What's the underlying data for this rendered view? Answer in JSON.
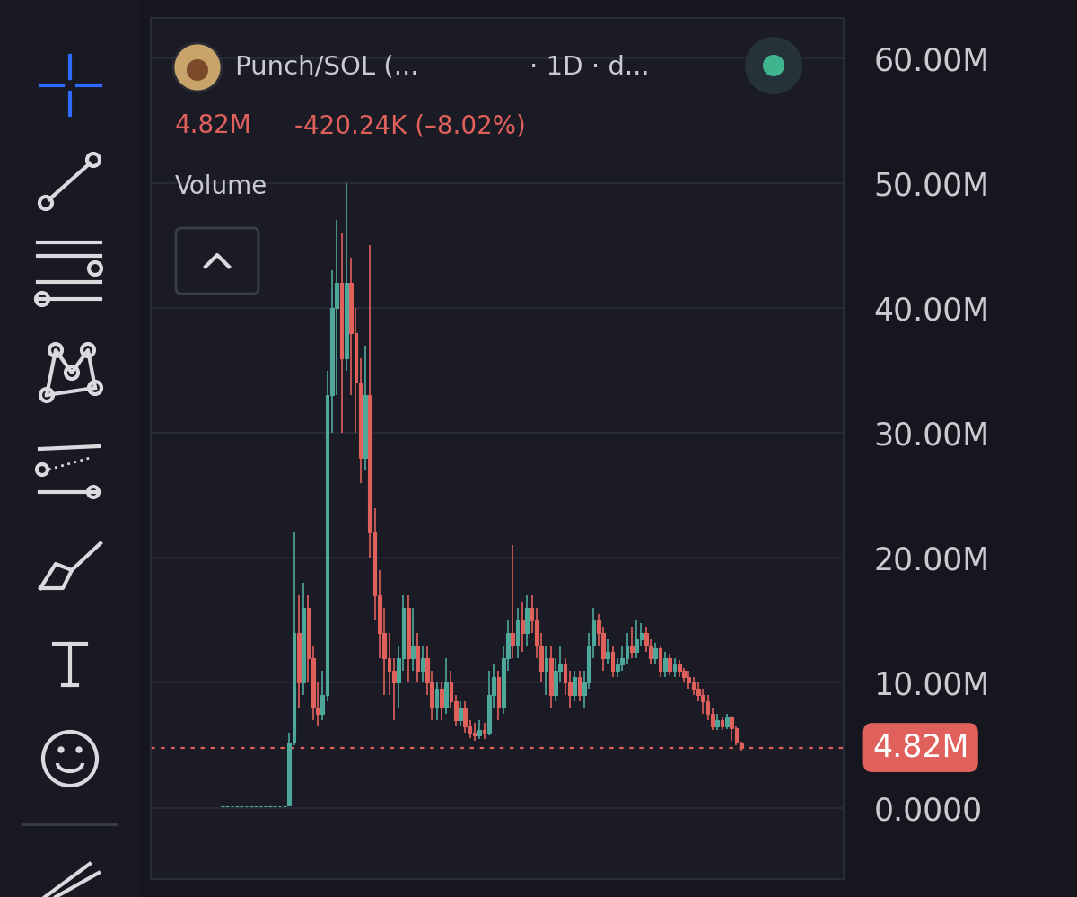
{
  "chart_data": {
    "type": "candlestick",
    "title": "Punch/SOL (...",
    "subtitle": "· 1D · d...",
    "price_label": "4.82M",
    "change_label": "-420.24K (–8.02%)",
    "indicator_label": "Volume",
    "last_price": {
      "value": 4820000,
      "label": "4.82M"
    },
    "color": {
      "up": "#4da89a",
      "down": "#e0605b"
    },
    "grid": true,
    "tick_labels": "y",
    "ylim": [
      -5700000,
      63200000
    ],
    "yticks": [
      {
        "value": 0,
        "label": "0.0000"
      },
      {
        "value": 10000000,
        "label": "10.00M"
      },
      {
        "value": 20000000,
        "label": "20.00M"
      },
      {
        "value": 30000000,
        "label": "30.00M"
      },
      {
        "value": 40000000,
        "label": "40.00M"
      },
      {
        "value": 50000000,
        "label": "50.00M"
      },
      {
        "value": 60000000,
        "label": "60.00M"
      }
    ],
    "categories": [
      null,
      null,
      null,
      null,
      null,
      null,
      null,
      null,
      null,
      null,
      null,
      null,
      null,
      null,
      null,
      null,
      null,
      null,
      null,
      null,
      null,
      null,
      null,
      null,
      null,
      null,
      null,
      null,
      null,
      null,
      null,
      null,
      null,
      null,
      null,
      null,
      null,
      null,
      null,
      null,
      null,
      null,
      null,
      null,
      null,
      null,
      null,
      null,
      null,
      null,
      null,
      null,
      null,
      null,
      null,
      null,
      null,
      null,
      null,
      null,
      null,
      null,
      null,
      null,
      null,
      null,
      null,
      null,
      null,
      null,
      null,
      null,
      null,
      null,
      null,
      null,
      null,
      null,
      null,
      null,
      null,
      null,
      null,
      null,
      null,
      null,
      null,
      null,
      null,
      null,
      null,
      null,
      null,
      null,
      null,
      null,
      null,
      null,
      null,
      null,
      null,
      null,
      null,
      null,
      null,
      null,
      null,
      null,
      null,
      null
    ],
    "open": [
      100000,
      100000,
      100000,
      100000,
      100000,
      100000,
      100000,
      100000,
      100000,
      100000,
      100000,
      100000,
      100000,
      100000,
      200000,
      5200000,
      14000000,
      10000000,
      16000000,
      12000000,
      8000000,
      7500000,
      9000000,
      33000000,
      40000000,
      42000000,
      36000000,
      42000000,
      38000000,
      34000000,
      28000000,
      33000000,
      22000000,
      17000000,
      14000000,
      12000000,
      11000000,
      10000000,
      12000000,
      16000000,
      12000000,
      13000000,
      11000000,
      12000000,
      10000000,
      8000000,
      9500000,
      8000000,
      10000000,
      8500000,
      7000000,
      8000000,
      6500000,
      6000000,
      5800000,
      6200000,
      6000000,
      9000000,
      10500000,
      8000000,
      12000000,
      14000000,
      13000000,
      15000000,
      14000000,
      16000000,
      15000000,
      13000000,
      11000000,
      12000000,
      9000000,
      11000000,
      11500000,
      10000000,
      9000000,
      10500000,
      9000000,
      10000000,
      13000000,
      15000000,
      14000000,
      12000000,
      12500000,
      11000000,
      11500000,
      12000000,
      13000000,
      12500000,
      13500000,
      14000000,
      13000000,
      12000000,
      12800000,
      11000000,
      12000000,
      11000000,
      11500000,
      11000000,
      10500000,
      10000000,
      9500000,
      9000000,
      8500000,
      7500000,
      6500000,
      7000000,
      6500000,
      7200000,
      6400000,
      5240000
    ],
    "high": [
      150000,
      150000,
      150000,
      150000,
      150000,
      150000,
      150000,
      150000,
      150000,
      150000,
      150000,
      150000,
      150000,
      150000,
      6000000,
      22000000,
      17000000,
      18000000,
      17000000,
      13000000,
      10000000,
      11000000,
      35000000,
      43000000,
      47000000,
      46000000,
      50000000,
      44000000,
      40000000,
      36000000,
      37000000,
      45000000,
      24000000,
      19000000,
      16000000,
      14000000,
      12000000,
      13000000,
      17000000,
      17000000,
      16000000,
      14000000,
      13000000,
      13000000,
      11000000,
      10000000,
      10000000,
      12000000,
      11000000,
      9000000,
      8500000,
      8500000,
      7000000,
      6800000,
      7000000,
      6800000,
      11000000,
      11500000,
      11000000,
      13000000,
      15000000,
      21000000,
      16000000,
      16500000,
      17000000,
      17000000,
      16000000,
      14000000,
      13000000,
      13000000,
      12000000,
      13000000,
      12000000,
      11000000,
      11000000,
      11000000,
      11000000,
      14000000,
      16000000,
      15500000,
      14500000,
      13500000,
      13000000,
      12000000,
      13000000,
      14000000,
      14500000,
      15000000,
      14800000,
      14500000,
      13500000,
      13200000,
      13000000,
      12500000,
      12300000,
      12000000,
      11800000,
      11200000,
      11000000,
      10500000,
      10000000,
      9500000,
      9000000,
      8000000,
      7500000,
      7200000,
      7500000,
      7400000,
      6600000,
      5300000
    ],
    "low": [
      50000,
      50000,
      50000,
      50000,
      50000,
      50000,
      50000,
      50000,
      50000,
      50000,
      50000,
      50000,
      50000,
      50000,
      200000,
      5000000,
      8000000,
      9000000,
      10000000,
      7000000,
      6500000,
      7000000,
      8500000,
      30000000,
      33000000,
      30000000,
      35000000,
      33000000,
      30000000,
      26000000,
      27000000,
      20000000,
      15000000,
      12000000,
      9000000,
      9000000,
      7000000,
      8000000,
      11000000,
      10000000,
      11000000,
      10000000,
      10000000,
      9000000,
      7000000,
      7000000,
      7000000,
      7500000,
      8000000,
      6500000,
      6500000,
      6000000,
      5600000,
      5400000,
      5500000,
      5500000,
      5800000,
      8000000,
      7000000,
      7500000,
      11000000,
      12000000,
      12000000,
      12500000,
      13000000,
      14000000,
      12000000,
      10000000,
      9000000,
      8000000,
      8500000,
      10000000,
      9000000,
      8000000,
      8500000,
      8500000,
      8000000,
      9500000,
      12000000,
      13000000,
      11000000,
      11500000,
      10500000,
      10500000,
      11000000,
      11500000,
      12000000,
      12000000,
      13000000,
      12500000,
      11500000,
      11500000,
      10500000,
      10500000,
      10600000,
      10500000,
      10500000,
      10000000,
      9500000,
      9000000,
      8500000,
      7500000,
      7000000,
      6200000,
      6200000,
      6200000,
      6300000,
      5400000,
      5000000,
      4600000
    ],
    "close": [
      100000,
      100000,
      100000,
      100000,
      100000,
      100000,
      100000,
      100000,
      100000,
      100000,
      100000,
      100000,
      100000,
      100000,
      5200000,
      14000000,
      10000000,
      16000000,
      12000000,
      8000000,
      7500000,
      9000000,
      33000000,
      40000000,
      42000000,
      36000000,
      42000000,
      38000000,
      34000000,
      28000000,
      33000000,
      22000000,
      17000000,
      14000000,
      12000000,
      11000000,
      10000000,
      12000000,
      16000000,
      12000000,
      13000000,
      11000000,
      12000000,
      10000000,
      8000000,
      9500000,
      8000000,
      10000000,
      8500000,
      7000000,
      8000000,
      6500000,
      6000000,
      5800000,
      6200000,
      6000000,
      9000000,
      10500000,
      8000000,
      12000000,
      14000000,
      13000000,
      15000000,
      14000000,
      16000000,
      15000000,
      13000000,
      11000000,
      12000000,
      9000000,
      11000000,
      11500000,
      10000000,
      9000000,
      10500000,
      9000000,
      10000000,
      13000000,
      15000000,
      14000000,
      12000000,
      12500000,
      11000000,
      11500000,
      12000000,
      13000000,
      12500000,
      13500000,
      14000000,
      13000000,
      12000000,
      12800000,
      11000000,
      12000000,
      11000000,
      11500000,
      11000000,
      10500000,
      10000000,
      9500000,
      9000000,
      8500000,
      7500000,
      6500000,
      7000000,
      6500000,
      7200000,
      6400000,
      5240000,
      4820000
    ]
  }
}
